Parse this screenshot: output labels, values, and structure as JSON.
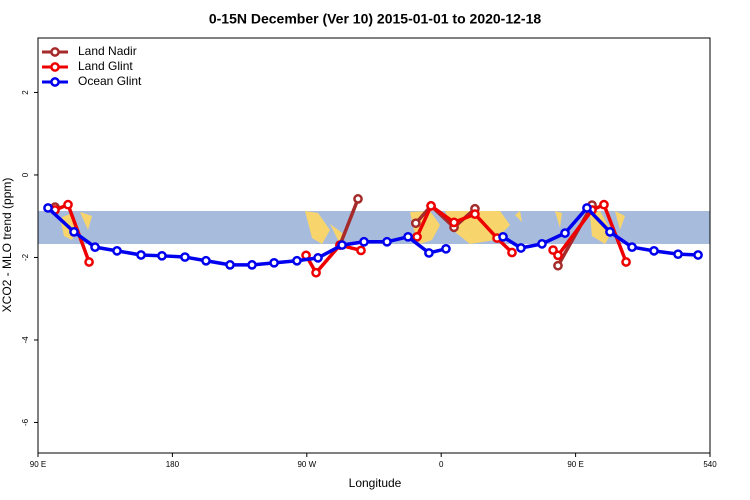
{
  "chart_data": {
    "type": "line",
    "title": "0-15N December (Ver 10)   2015-01-01 to 2020-12-18",
    "xlabel": "Longitude",
    "ylabel": "XCO2 - MLO trend (ppm)",
    "xlim": [
      90,
      540
    ],
    "ylim": [
      -6.74,
      3.32
    ],
    "xticks": [
      {
        "value": 90,
        "label": "90 E"
      },
      180,
      {
        "value": 270,
        "label": "90 W"
      },
      {
        "value": 360,
        "label": "0"
      },
      {
        "value": 450,
        "label": "90 E"
      },
      540
    ],
    "yticks": [
      -6,
      -4,
      -2,
      0,
      2
    ],
    "legend": "top-left",
    "series": [
      {
        "name": "Land Nadir",
        "color": "#a52a2a",
        "x": [
          101.4,
          null,
          292.2,
          304.3,
          null,
          343.0,
          353.2,
          368.6,
          382.6,
          null,
          438.2,
          461.0
        ],
        "values": [
          -0.78,
          null,
          -1.7,
          -0.58,
          null,
          -1.17,
          -0.75,
          -1.27,
          -0.82,
          null,
          -2.2,
          -0.73
        ]
      },
      {
        "name": "Land Glint",
        "color": "#ee0000",
        "x": [
          101.4,
          110.1,
          124.2,
          null,
          269.5,
          276.2,
          292.2,
          306.3,
          null,
          343.8,
          353.2,
          368.6,
          382.6,
          397.4,
          407.4,
          null,
          434.9,
          438.2,
          461.0,
          469.0,
          483.8
        ],
        "values": [
          -0.85,
          -0.72,
          -2.11,
          null,
          -1.95,
          -2.37,
          -1.7,
          -1.83,
          null,
          -1.5,
          -0.75,
          -1.15,
          -0.95,
          -1.53,
          -1.88,
          null,
          -1.82,
          -1.95,
          -0.85,
          -0.72,
          -2.11
        ]
      },
      {
        "name": "Ocean Glint",
        "color": "#0000ee",
        "x": [
          96.7,
          114.1,
          128.2,
          142.9,
          159.0,
          173.0,
          188.4,
          202.5,
          218.6,
          233.3,
          248.1,
          263.4,
          277.5,
          293.6,
          308.3,
          323.7,
          337.8,
          351.8,
          363.2,
          null,
          401.4,
          413.4,
          427.5,
          442.9,
          457.6,
          473.0,
          487.8,
          502.5,
          518.6,
          532.0
        ],
        "values": [
          -0.8,
          -1.38,
          -1.75,
          -1.84,
          -1.94,
          -1.96,
          -1.99,
          -2.08,
          -2.18,
          -2.18,
          -2.13,
          -2.08,
          -2.01,
          -1.7,
          -1.62,
          -1.62,
          -1.5,
          -1.89,
          -1.79,
          null,
          -1.5,
          -1.77,
          -1.67,
          -1.41,
          -0.8,
          -1.38,
          -1.75,
          -1.84,
          -1.92,
          -1.94
        ]
      }
    ]
  }
}
